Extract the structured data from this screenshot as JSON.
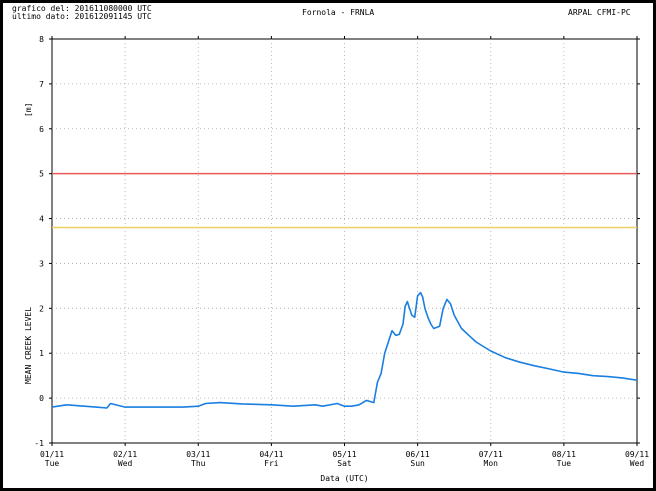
{
  "header": {
    "line1": "grafico del: 201611080000 UTC",
    "line2": "ultimo dato: 201612091145 UTC",
    "title": "Fornola - FRNLA",
    "right": "ARPAL CFMI-PC"
  },
  "chart_data": {
    "type": "line",
    "title": "Fornola - FRNLA",
    "xlabel": "Data (UTC)",
    "ylabel": "MEAN CREEK LEVEL",
    "yunit": "[m]",
    "ylim": [
      -1,
      8
    ],
    "yticks": [
      -1,
      0,
      1,
      2,
      3,
      4,
      5,
      6,
      7,
      8
    ],
    "xlim": [
      0,
      8
    ],
    "xticks": [
      {
        "date": "01/11",
        "day": "Tue"
      },
      {
        "date": "02/11",
        "day": "Wed"
      },
      {
        "date": "03/11",
        "day": "Thu"
      },
      {
        "date": "04/11",
        "day": "Fri"
      },
      {
        "date": "05/11",
        "day": "Sat"
      },
      {
        "date": "06/11",
        "day": "Sun"
      },
      {
        "date": "07/11",
        "day": "Mon"
      },
      {
        "date": "08/11",
        "day": "Tue"
      },
      {
        "date": "09/11",
        "day": "Wed"
      }
    ],
    "grid": true,
    "thresholds": [
      {
        "value": 5.0,
        "color": "#e85a5a"
      },
      {
        "value": 3.8,
        "color": "#f0d060"
      }
    ],
    "series": [
      {
        "color": "#1a7fe0",
        "x": [
          0,
          0.2,
          0.6,
          0.75,
          0.8,
          1.0,
          1.3,
          1.6,
          1.8,
          2.0,
          2.1,
          2.3,
          2.6,
          3.0,
          3.3,
          3.6,
          3.7,
          3.9,
          4.0,
          4.1,
          4.2,
          4.3,
          4.4,
          4.45,
          4.5,
          4.55,
          4.65,
          4.7,
          4.75,
          4.8,
          4.83,
          4.86,
          4.88,
          4.9,
          4.92,
          4.96,
          5.0,
          5.04,
          5.07,
          5.1,
          5.14,
          5.18,
          5.22,
          5.3,
          5.35,
          5.4,
          5.45,
          5.5,
          5.55,
          5.6,
          5.7,
          5.8,
          5.9,
          6.0,
          6.2,
          6.4,
          6.6,
          6.8,
          7.0,
          7.2,
          7.4,
          7.6,
          7.8,
          8.0
        ],
        "y": [
          -0.2,
          -0.15,
          -0.2,
          -0.22,
          -0.12,
          -0.2,
          -0.2,
          -0.2,
          -0.2,
          -0.18,
          -0.12,
          -0.1,
          -0.13,
          -0.15,
          -0.18,
          -0.15,
          -0.18,
          -0.12,
          -0.18,
          -0.18,
          -0.15,
          -0.05,
          -0.1,
          0.35,
          0.55,
          1.0,
          1.5,
          1.4,
          1.42,
          1.65,
          2.05,
          2.15,
          2.05,
          1.95,
          1.85,
          1.8,
          2.28,
          2.35,
          2.25,
          2.0,
          1.8,
          1.65,
          1.55,
          1.6,
          2.0,
          2.2,
          2.1,
          1.85,
          1.7,
          1.55,
          1.4,
          1.25,
          1.15,
          1.05,
          0.9,
          0.8,
          0.72,
          0.65,
          0.58,
          0.55,
          0.5,
          0.48,
          0.45,
          0.4
        ]
      }
    ]
  }
}
